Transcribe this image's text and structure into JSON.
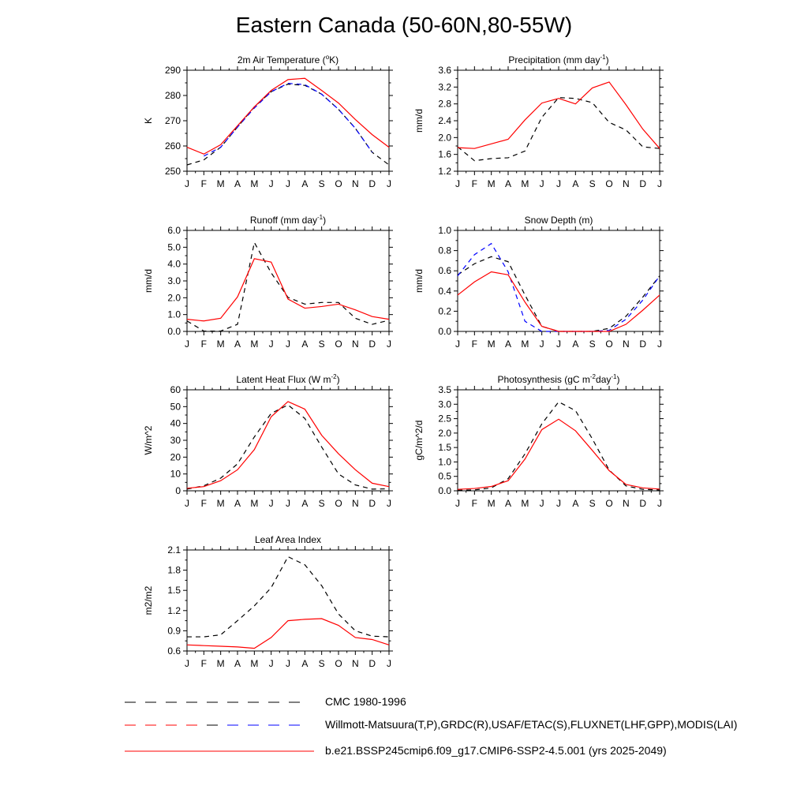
{
  "title": "Eastern Canada (50-60N,80-55W)",
  "colors": {
    "model": "#ff0000",
    "obs": "#000000",
    "obs2": "#0000ff",
    "axis": "#000000"
  },
  "legend": [
    {
      "label": "CMC 1980-1996",
      "style": "dashed",
      "colors": [
        "#000000"
      ]
    },
    {
      "label": "Willmott-Matsuura(T,P),GRDC(R),USAF/ETAC(S),FLUXNET(LHF,GPP),MODIS(LAI)",
      "style": "dashed",
      "colors": [
        "#000000",
        "#ff0000",
        "#0000ff"
      ]
    },
    {
      "label": "b.e21.BSSP245cmip6.f09_g17.CMIP6-SSP2-4.5.001 (yrs 2025-2049)",
      "style": "solid",
      "colors": [
        "#ff0000"
      ]
    }
  ],
  "chart_data": [
    {
      "type": "line",
      "title": "2m Air Temperature (°K)",
      "title_parts": [
        "2m Air Temperature (",
        "o",
        "K)"
      ],
      "ylabel": "K",
      "x": [
        "J",
        "F",
        "M",
        "A",
        "M",
        "J",
        "J",
        "A",
        "S",
        "O",
        "N",
        "D",
        "J"
      ],
      "ylim": [
        250,
        290
      ],
      "yticks": [
        250,
        260,
        270,
        280,
        290
      ],
      "ytick_labels": [
        "250",
        "260",
        "270",
        "280",
        "290"
      ],
      "series": [
        {
          "role": "model",
          "style": "solid",
          "color": "#ff0000",
          "values": [
            259.5,
            256.8,
            260.5,
            268,
            275.5,
            282,
            286.3,
            286.8,
            282,
            277,
            270.5,
            264.5,
            259.5
          ]
        },
        {
          "role": "cmc",
          "style": "dashed",
          "color": "#000000",
          "values": [
            252.5,
            254.5,
            259.5,
            267.5,
            275.5,
            281.5,
            284.5,
            284,
            280.5,
            274.5,
            267,
            257.5,
            252.5
          ]
        },
        {
          "role": "obs",
          "style": "dashed",
          "color": "#0000ff",
          "values": [
            null,
            256,
            259.5,
            267.5,
            275,
            281.5,
            284.8,
            284.3,
            280.5,
            274.5,
            267,
            257.5,
            null
          ]
        }
      ]
    },
    {
      "type": "line",
      "title": "Precipitation (mm day-1)",
      "title_parts": [
        "Precipitation (mm day",
        "-1",
        ")"
      ],
      "ylabel": "mm/d",
      "x": [
        "J",
        "F",
        "M",
        "A",
        "M",
        "J",
        "J",
        "A",
        "S",
        "O",
        "N",
        "D",
        "J"
      ],
      "ylim": [
        1.2,
        3.6
      ],
      "yticks": [
        1.2,
        1.6,
        2.0,
        2.4,
        2.8,
        3.2,
        3.6
      ],
      "ytick_labels": [
        "1.2",
        "1.6",
        "2.0",
        "2.4",
        "2.8",
        "3.2",
        "3.6"
      ],
      "series": [
        {
          "role": "model",
          "style": "solid",
          "color": "#ff0000",
          "values": [
            1.76,
            1.74,
            1.85,
            1.96,
            2.42,
            2.82,
            2.93,
            2.8,
            3.18,
            3.32,
            2.78,
            2.2,
            1.74
          ]
        },
        {
          "role": "cmc",
          "style": "dashed",
          "color": "#000000",
          "values": [
            1.78,
            1.45,
            1.5,
            1.52,
            1.68,
            2.48,
            2.95,
            2.93,
            2.83,
            2.36,
            2.18,
            1.78,
            1.74
          ]
        }
      ]
    },
    {
      "type": "line",
      "title": "Runoff (mm day-1)",
      "title_parts": [
        "Runoff (mm day",
        "-1",
        ")"
      ],
      "ylabel": "mm/d",
      "x": [
        "J",
        "F",
        "M",
        "A",
        "M",
        "J",
        "J",
        "A",
        "S",
        "O",
        "N",
        "D",
        "J"
      ],
      "ylim": [
        0,
        6
      ],
      "yticks": [
        0,
        1,
        2,
        3,
        4,
        5,
        6
      ],
      "ytick_labels": [
        "0.0",
        "1.0",
        "2.0",
        "3.0",
        "4.0",
        "5.0",
        "6.0"
      ],
      "series": [
        {
          "role": "model",
          "style": "solid",
          "color": "#ff0000",
          "values": [
            0.72,
            0.62,
            0.78,
            2.05,
            4.32,
            4.12,
            1.92,
            1.38,
            1.48,
            1.62,
            1.28,
            0.88,
            0.72
          ]
        },
        {
          "role": "cmc",
          "style": "dashed",
          "color": "#000000",
          "values": [
            0.62,
            0.02,
            0.02,
            0.42,
            5.28,
            3.48,
            2.02,
            1.62,
            1.72,
            1.72,
            0.78,
            0.42,
            0.66
          ]
        }
      ]
    },
    {
      "type": "line",
      "title": "Snow Depth (m)",
      "title_parts": [
        "Snow Depth (m)"
      ],
      "ylabel": "mm/d",
      "x": [
        "J",
        "F",
        "M",
        "A",
        "M",
        "J",
        "J",
        "A",
        "S",
        "O",
        "N",
        "D",
        "J"
      ],
      "ylim": [
        0,
        1
      ],
      "yticks": [
        0,
        0.2,
        0.4,
        0.6,
        0.8,
        1.0
      ],
      "ytick_labels": [
        "0.0",
        "0.2",
        "0.4",
        "0.6",
        "0.8",
        "1.0"
      ],
      "series": [
        {
          "role": "model",
          "style": "solid",
          "color": "#ff0000",
          "values": [
            0.36,
            0.49,
            0.59,
            0.56,
            0.29,
            0.05,
            0.0,
            0.0,
            0.0,
            0.0,
            0.07,
            0.21,
            0.36
          ]
        },
        {
          "role": "cmc",
          "style": "dashed",
          "color": "#000000",
          "values": [
            0.56,
            0.67,
            0.74,
            0.69,
            0.36,
            0.05,
            0.0,
            0.0,
            0.0,
            0.03,
            0.15,
            0.34,
            0.55
          ]
        },
        {
          "role": "obs",
          "style": "dashed",
          "color": "#0000ff",
          "values": [
            0.55,
            0.76,
            0.87,
            0.59,
            0.1,
            0.0,
            0.0,
            0.0,
            0.0,
            0.01,
            0.12,
            0.31,
            0.55
          ]
        }
      ]
    },
    {
      "type": "line",
      "title": "Latent Heat Flux (W m-2)",
      "title_parts": [
        "Latent Heat Flux (W m",
        "-2",
        ")"
      ],
      "ylabel": "W/m^2",
      "x": [
        "J",
        "F",
        "M",
        "A",
        "M",
        "J",
        "J",
        "A",
        "S",
        "O",
        "N",
        "D",
        "J"
      ],
      "ylim": [
        0,
        60
      ],
      "yticks": [
        0,
        10,
        20,
        30,
        40,
        50,
        60
      ],
      "ytick_labels": [
        "0",
        "10",
        "20",
        "30",
        "40",
        "50",
        "60"
      ],
      "series": [
        {
          "role": "model",
          "style": "solid",
          "color": "#ff0000",
          "values": [
            1.5,
            2.5,
            6,
            12.5,
            24.5,
            44,
            53,
            48.5,
            33,
            22,
            12.5,
            4.5,
            2.5
          ]
        },
        {
          "role": "cmc",
          "style": "dashed",
          "color": "#000000",
          "values": [
            1,
            3,
            7.5,
            16,
            32,
            46,
            51,
            43,
            26,
            10,
            3.5,
            1,
            1.2
          ]
        }
      ]
    },
    {
      "type": "line",
      "title": "Photosynthesis (gC m-2day-1)",
      "title_parts": [
        "Photosynthesis (gC m",
        "-2",
        "day",
        "-1",
        ")"
      ],
      "ylabel": "gC/m^2/d",
      "x": [
        "J",
        "F",
        "M",
        "A",
        "M",
        "J",
        "J",
        "A",
        "S",
        "O",
        "N",
        "D",
        "J"
      ],
      "ylim": [
        0,
        3.5
      ],
      "yticks": [
        0,
        0.5,
        1.0,
        1.5,
        2.0,
        2.5,
        3.0,
        3.5
      ],
      "ytick_labels": [
        "0.0",
        "0.5",
        "1.0",
        "1.5",
        "2.0",
        "2.5",
        "3.0",
        "3.5"
      ],
      "series": [
        {
          "role": "model",
          "style": "solid",
          "color": "#ff0000",
          "values": [
            0.05,
            0.08,
            0.15,
            0.35,
            1.1,
            2.12,
            2.48,
            2.08,
            1.4,
            0.7,
            0.22,
            0.1,
            0.06
          ]
        },
        {
          "role": "cmc",
          "style": "dashed",
          "color": "#000000",
          "values": [
            0.02,
            0.03,
            0.1,
            0.42,
            1.28,
            2.32,
            3.08,
            2.78,
            1.8,
            0.72,
            0.17,
            0.05,
            0.03
          ]
        }
      ]
    },
    {
      "type": "line",
      "title": "Leaf Area Index",
      "title_parts": [
        "Leaf Area Index"
      ],
      "ylabel": "m2/m2",
      "x": [
        "J",
        "F",
        "M",
        "A",
        "M",
        "J",
        "J",
        "A",
        "S",
        "O",
        "N",
        "D",
        "J"
      ],
      "ylim": [
        0.6,
        2.1
      ],
      "yticks": [
        0.6,
        0.9,
        1.2,
        1.5,
        1.8,
        2.1
      ],
      "ytick_labels": [
        "0.6",
        "0.9",
        "1.2",
        "1.5",
        "1.8",
        "2.1"
      ],
      "series": [
        {
          "role": "model",
          "style": "solid",
          "color": "#ff0000",
          "values": [
            0.69,
            0.68,
            0.67,
            0.66,
            0.64,
            0.8,
            1.05,
            1.07,
            1.08,
            0.98,
            0.8,
            0.77,
            0.69
          ]
        },
        {
          "role": "cmc",
          "style": "dashed",
          "color": "#000000",
          "values": [
            0.81,
            0.81,
            0.84,
            1.05,
            1.27,
            1.54,
            2.0,
            1.88,
            1.57,
            1.15,
            0.9,
            0.82,
            0.81
          ]
        }
      ]
    }
  ]
}
